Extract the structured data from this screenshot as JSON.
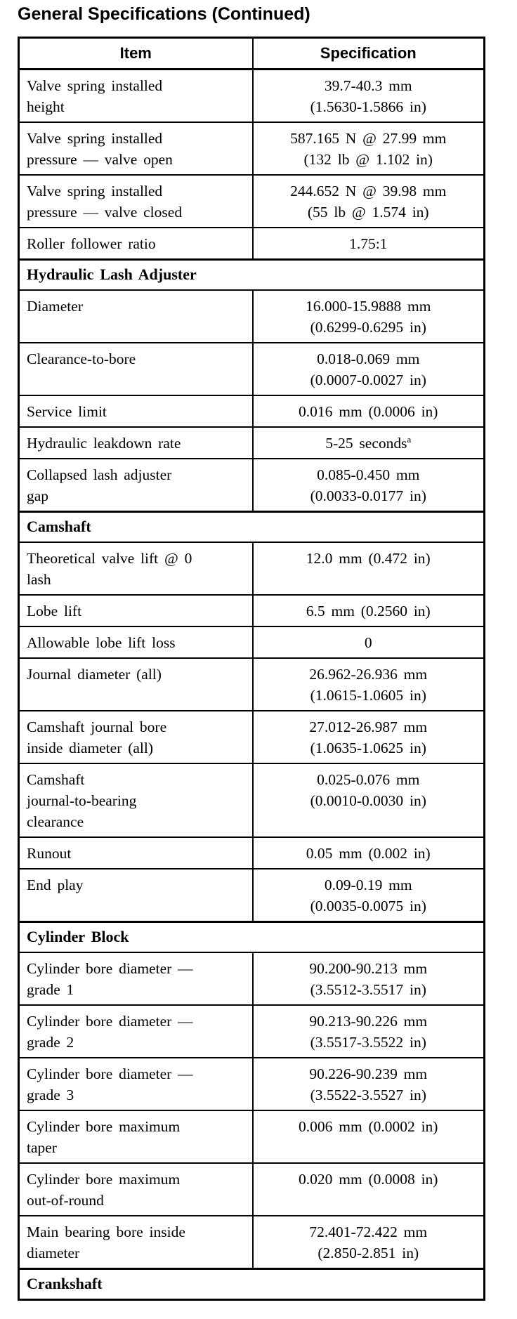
{
  "page": {
    "title": "General Specifications (Continued)"
  },
  "table": {
    "headers": [
      "Item",
      "Specification"
    ],
    "rows": [
      {
        "item": [
          "Valve spring installed",
          "height"
        ],
        "spec": [
          "39.7-40.3 mm",
          "(1.5630-1.5866 in)"
        ]
      },
      {
        "item": [
          "Valve spring installed",
          "pressure — valve open"
        ],
        "spec": [
          "587.165 N @ 27.99 mm",
          "(132 lb @ 1.102 in)"
        ]
      },
      {
        "item": [
          "Valve spring installed",
          "pressure — valve closed"
        ],
        "spec": [
          "244.652 N @ 39.98 mm",
          "(55 lb @ 1.574 in)"
        ]
      },
      {
        "item": [
          "Roller follower ratio"
        ],
        "spec": [
          "1.75:1"
        ]
      },
      {
        "section": "Hydraulic Lash Adjuster"
      },
      {
        "item": [
          "Diameter"
        ],
        "spec": [
          "16.000-15.9888 mm",
          "(0.6299-0.6295 in)"
        ]
      },
      {
        "item": [
          "Clearance-to-bore"
        ],
        "spec": [
          "0.018-0.069 mm",
          "(0.0007-0.0027 in)"
        ]
      },
      {
        "item": [
          "Service limit"
        ],
        "spec": [
          "0.016 mm (0.0006 in)"
        ]
      },
      {
        "item": [
          "Hydraulic leakdown rate"
        ],
        "spec": [
          {
            "text": "5-25 seconds",
            "sup": "a"
          }
        ]
      },
      {
        "item": [
          "Collapsed lash adjuster",
          "gap"
        ],
        "spec": [
          "0.085-0.450 mm",
          "(0.0033-0.0177 in)"
        ]
      },
      {
        "section": "Camshaft"
      },
      {
        "item": [
          "Theoretical valve lift @ 0",
          "lash"
        ],
        "spec": [
          "12.0 mm (0.472 in)"
        ]
      },
      {
        "item": [
          "Lobe lift"
        ],
        "spec": [
          "6.5 mm (0.2560 in)"
        ]
      },
      {
        "item": [
          "Allowable lobe lift loss"
        ],
        "spec": [
          "0"
        ]
      },
      {
        "item": [
          "Journal diameter (all)"
        ],
        "spec": [
          "26.962-26.936 mm",
          "(1.0615-1.0605 in)"
        ]
      },
      {
        "item": [
          "Camshaft journal bore",
          "inside diameter (all)"
        ],
        "spec": [
          "27.012-26.987 mm",
          "(1.0635-1.0625 in)"
        ]
      },
      {
        "item": [
          "Camshaft",
          "journal-to-bearing",
          "clearance"
        ],
        "spec": [
          "0.025-0.076 mm",
          "(0.0010-0.0030 in)"
        ]
      },
      {
        "item": [
          "Runout"
        ],
        "spec": [
          "0.05 mm (0.002 in)"
        ]
      },
      {
        "item": [
          "End play"
        ],
        "spec": [
          "0.09-0.19 mm",
          "(0.0035-0.0075 in)"
        ]
      },
      {
        "section": "Cylinder Block"
      },
      {
        "item": [
          "Cylinder bore diameter —",
          "grade 1"
        ],
        "spec": [
          "90.200-90.213 mm",
          "(3.5512-3.5517 in)"
        ]
      },
      {
        "item": [
          "Cylinder bore diameter —",
          "grade 2"
        ],
        "spec": [
          "90.213-90.226 mm",
          "(3.5517-3.5522 in)"
        ]
      },
      {
        "item": [
          "Cylinder bore diameter —",
          "grade 3"
        ],
        "spec": [
          "90.226-90.239 mm",
          "(3.5522-3.5527 in)"
        ]
      },
      {
        "item": [
          "Cylinder bore maximum",
          "taper"
        ],
        "spec": [
          "0.006 mm (0.0002 in)"
        ]
      },
      {
        "item": [
          "Cylinder bore maximum",
          "out-of-round"
        ],
        "spec": [
          "0.020 mm (0.0008 in)"
        ]
      },
      {
        "item": [
          "Main bearing bore inside",
          "diameter"
        ],
        "spec": [
          "72.401-72.422 mm",
          "(2.850-2.851 in)"
        ]
      },
      {
        "section": "Crankshaft"
      }
    ]
  }
}
